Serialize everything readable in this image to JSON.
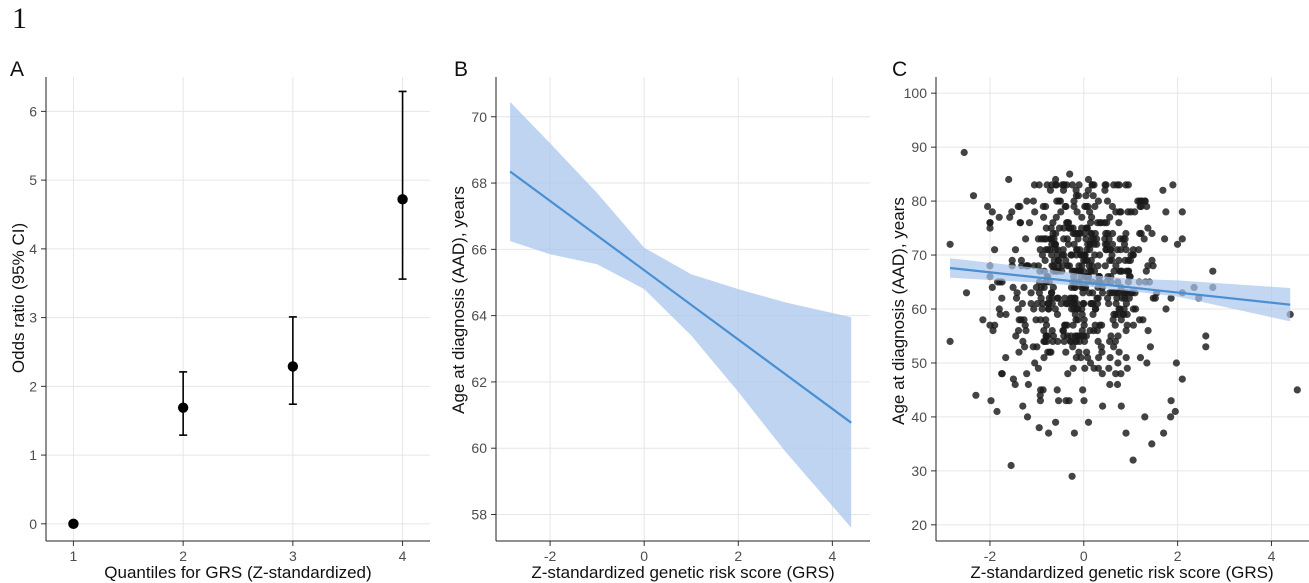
{
  "figure": {
    "number": "1"
  },
  "colors": {
    "fit_line": "#4a8fd1",
    "ci_band": "#a9c6ec",
    "points": "#1a1a1a",
    "grid": "#e6e6e6"
  },
  "chart_data": [
    {
      "panel": "A",
      "type": "scatter",
      "xlabel": "Quantiles for GRS (Z-standardized)",
      "ylabel": "Odds ratio (95% CI)",
      "x_ticks": [
        1,
        2,
        3,
        4
      ],
      "y_ticks": [
        0,
        1,
        2,
        3,
        4,
        5,
        6
      ],
      "xlim": [
        0.75,
        4.25
      ],
      "ylim": [
        -0.25,
        6.5
      ],
      "grid": true,
      "points": [
        {
          "x": 1,
          "y": 0.0,
          "lower": null,
          "upper": null
        },
        {
          "x": 2,
          "y": 1.69,
          "lower": 1.29,
          "upper": 2.21
        },
        {
          "x": 3,
          "y": 2.29,
          "lower": 1.74,
          "upper": 3.01
        },
        {
          "x": 4,
          "y": 4.72,
          "lower": 3.56,
          "upper": 6.29
        }
      ]
    },
    {
      "panel": "B",
      "type": "line",
      "xlabel": "Z-standardized genetic risk score (GRS)",
      "ylabel": "Age at diagnosis (AAD), years",
      "x_ticks": [
        -2,
        0,
        2,
        4
      ],
      "y_ticks": [
        58,
        60,
        62,
        64,
        66,
        68,
        70
      ],
      "xlim": [
        -3.15,
        4.8
      ],
      "ylim": [
        57.2,
        71.2
      ],
      "grid": true,
      "fit": {
        "x": [
          -2.85,
          4.4
        ],
        "y": [
          68.35,
          60.77
        ]
      },
      "ci_band": {
        "x": [
          -2.85,
          -2.0,
          -1.0,
          0.0,
          1.0,
          2.0,
          3.0,
          4.4
        ],
        "upper": [
          70.45,
          69.2,
          67.7,
          66.05,
          65.25,
          64.8,
          64.4,
          63.95
        ],
        "lower": [
          66.25,
          65.85,
          65.55,
          64.8,
          63.4,
          61.7,
          59.9,
          57.6
        ]
      }
    },
    {
      "panel": "C",
      "type": "scatter",
      "xlabel": "Z-standardized genetic risk score (GRS)",
      "ylabel": "Age at diagnosis (AAD), years",
      "x_ticks": [
        -2,
        0,
        2,
        4
      ],
      "y_ticks": [
        20,
        30,
        40,
        50,
        60,
        70,
        80,
        90,
        100
      ],
      "xlim": [
        -3.15,
        4.8
      ],
      "ylim": [
        17,
        103
      ],
      "grid": true,
      "fit": {
        "x": [
          -2.85,
          4.4
        ],
        "y": [
          67.6,
          60.8
        ]
      },
      "ci_band": {
        "x": [
          -2.85,
          -1.0,
          0.0,
          1.0,
          2.0,
          4.4
        ],
        "upper": [
          69.4,
          67.6,
          66.4,
          65.6,
          65.3,
          63.9
        ],
        "lower": [
          65.8,
          64.9,
          64.2,
          63.3,
          62.3,
          57.7
        ]
      },
      "points": [
        {
          "x": -2.55,
          "y": 89
        },
        {
          "x": -2.85,
          "y": 72
        },
        {
          "x": -2.85,
          "y": 54
        },
        {
          "x": -2.5,
          "y": 63
        },
        {
          "x": -2.35,
          "y": 81
        },
        {
          "x": -2.3,
          "y": 44
        },
        {
          "x": -2.05,
          "y": 79
        },
        {
          "x": -1.95,
          "y": 78
        },
        {
          "x": -1.9,
          "y": 71
        },
        {
          "x": -2.15,
          "y": 58
        },
        {
          "x": -1.85,
          "y": 41
        },
        {
          "x": -1.6,
          "y": 84
        },
        {
          "x": -1.75,
          "y": 48
        },
        {
          "x": -1.55,
          "y": 31
        },
        {
          "x": -1.5,
          "y": 47
        },
        {
          "x": -1.45,
          "y": 55
        },
        {
          "x": -1.3,
          "y": 42
        },
        {
          "x": -1.2,
          "y": 40
        },
        {
          "x": -0.95,
          "y": 38
        },
        {
          "x": -0.75,
          "y": 37
        },
        {
          "x": -0.6,
          "y": 39
        },
        {
          "x": -0.25,
          "y": 29
        },
        {
          "x": -0.2,
          "y": 37
        },
        {
          "x": 0.1,
          "y": 39
        },
        {
          "x": 0.4,
          "y": 42
        },
        {
          "x": 0.8,
          "y": 42
        },
        {
          "x": 0.9,
          "y": 37
        },
        {
          "x": 1.05,
          "y": 32
        },
        {
          "x": 1.3,
          "y": 40
        },
        {
          "x": 1.45,
          "y": 35
        },
        {
          "x": 1.7,
          "y": 37
        },
        {
          "x": 1.85,
          "y": 40
        },
        {
          "x": 1.95,
          "y": 41
        },
        {
          "x": 1.9,
          "y": 83
        },
        {
          "x": 2.1,
          "y": 78
        },
        {
          "x": 2.35,
          "y": 64
        },
        {
          "x": 2.45,
          "y": 62
        },
        {
          "x": 2.6,
          "y": 55
        },
        {
          "x": 2.6,
          "y": 53
        },
        {
          "x": 2.75,
          "y": 67
        },
        {
          "x": 2.75,
          "y": 64
        },
        {
          "x": 4.4,
          "y": 59
        },
        {
          "x": 4.55,
          "y": 45
        },
        {
          "x": -0.95,
          "y": 83
        },
        {
          "x": -0.3,
          "y": 85
        },
        {
          "x": 0.1,
          "y": 84
        },
        {
          "x": 0.45,
          "y": 82
        },
        {
          "x": -0.6,
          "y": 84
        },
        {
          "x": 0.95,
          "y": 83
        },
        {
          "x": 1.3,
          "y": 80
        },
        {
          "x": 1.75,
          "y": 78
        }
      ],
      "point_cloud": {
        "n": 560,
        "x_mean": -0.05,
        "x_sd": 0.85,
        "y_mean": 65.5,
        "y_sd": 9.5
      }
    }
  ]
}
